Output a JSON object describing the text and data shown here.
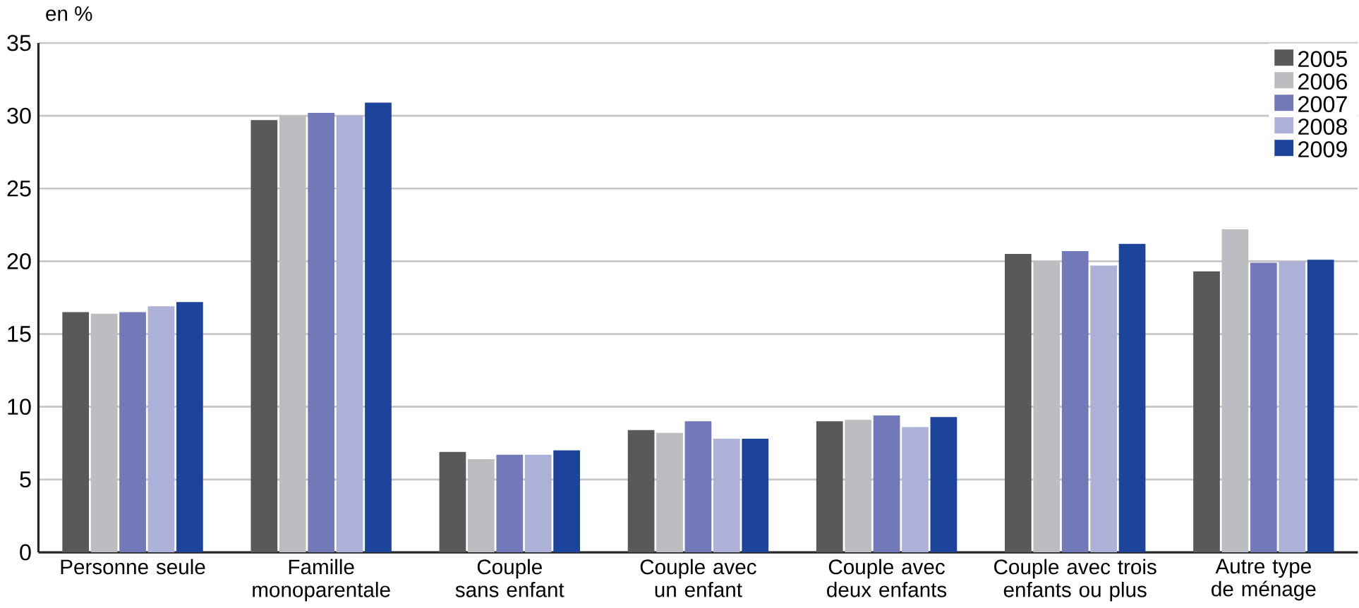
{
  "chart_data": {
    "type": "bar",
    "ylabel": "en %",
    "categories": [
      "Personne seule",
      "Famille monoparentale",
      "Couple sans enfant",
      "Couple avec un enfant",
      "Couple avec deux enfants",
      "Couple avec trois enfants ou plus",
      "Autre type de ménage"
    ],
    "series": [
      {
        "name": "2005",
        "color": "#58595b",
        "values": [
          16.5,
          29.7,
          6.9,
          8.4,
          9.0,
          20.5,
          19.3
        ]
      },
      {
        "name": "2006",
        "color": "#bcbdc0",
        "values": [
          16.4,
          30.0,
          6.4,
          8.2,
          9.1,
          20.0,
          22.2
        ]
      },
      {
        "name": "2007",
        "color": "#7279b9",
        "values": [
          16.5,
          30.2,
          6.7,
          9.0,
          9.4,
          20.7,
          19.9
        ]
      },
      {
        "name": "2008",
        "color": "#aeb1d7",
        "values": [
          16.9,
          30.0,
          6.7,
          7.8,
          8.6,
          19.7,
          20.0
        ]
      },
      {
        "name": "2009",
        "color": "#1c449b",
        "values": [
          17.2,
          30.9,
          7.0,
          7.8,
          9.3,
          21.2,
          20.1
        ]
      }
    ],
    "ylim": [
      0,
      35
    ],
    "yticks": [
      0,
      5,
      10,
      15,
      20,
      25,
      30,
      35
    ],
    "grid": "y",
    "legend": "top right"
  }
}
